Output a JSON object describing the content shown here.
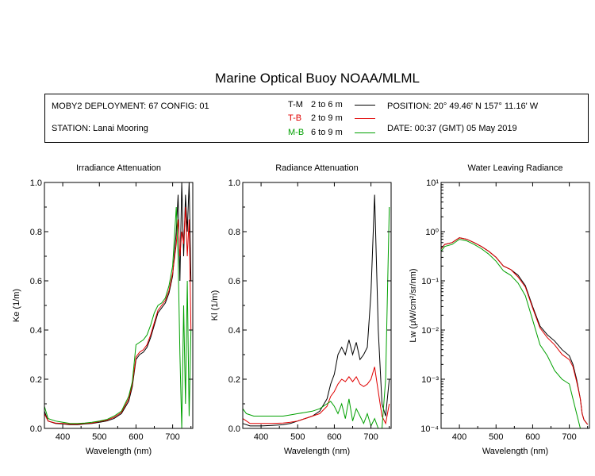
{
  "title": "Marine Optical Buoy NOAA/MLML",
  "info": {
    "deployment": "MOBY2 DEPLOYMENT: 67 CONFIG: 01",
    "station": "STATION: Lanai Mooring",
    "position": "POSITION: 20° 49.46' N   157° 11.16' W",
    "date": "DATE: 00:37 (GMT) 05 May 2019",
    "legend": [
      {
        "code": "T-M",
        "range": "2 to 6  m",
        "color": "#000000"
      },
      {
        "code": "T-B",
        "range": "2 to 9  m",
        "color": "#e00000"
      },
      {
        "code": "M-B",
        "range": "6 to 9  m",
        "color": "#00a000"
      }
    ]
  },
  "chart_data": [
    {
      "type": "line",
      "title": "Irradiance Attenuation",
      "xlabel": "Wavelength (nm)",
      "ylabel": "Ke  (1/m)",
      "xlim": [
        350,
        755
      ],
      "ylim": [
        0,
        1.0
      ],
      "xticks": [
        400,
        500,
        600,
        700
      ],
      "yticks": [
        0.0,
        0.2,
        0.4,
        0.6,
        0.8,
        1.0
      ],
      "yticklabels": [
        "0.0",
        "0.2",
        "0.4",
        "0.6",
        "0.8",
        "1.0"
      ],
      "series": [
        {
          "name": "T-M",
          "color": "#000000",
          "x": [
            350,
            360,
            380,
            400,
            420,
            440,
            460,
            480,
            500,
            520,
            540,
            560,
            580,
            590,
            600,
            610,
            620,
            630,
            640,
            650,
            660,
            670,
            680,
            690,
            700,
            710,
            715,
            720,
            725,
            730,
            735,
            740,
            745,
            750
          ],
          "y": [
            0.07,
            0.03,
            0.02,
            0.018,
            0.015,
            0.015,
            0.018,
            0.02,
            0.025,
            0.03,
            0.04,
            0.06,
            0.11,
            0.17,
            0.28,
            0.3,
            0.31,
            0.33,
            0.37,
            0.42,
            0.47,
            0.49,
            0.51,
            0.55,
            0.62,
            0.8,
            0.95,
            0.6,
            1.0,
            0.7,
            0.95,
            0.8,
            1.0,
            0.6
          ]
        },
        {
          "name": "T-B",
          "color": "#e00000",
          "x": [
            350,
            360,
            380,
            400,
            420,
            440,
            460,
            480,
            500,
            520,
            540,
            560,
            580,
            590,
            600,
            610,
            620,
            630,
            640,
            650,
            660,
            670,
            680,
            690,
            700,
            710,
            715,
            720,
            725,
            730,
            735,
            740,
            745,
            750
          ],
          "y": [
            0.06,
            0.03,
            0.022,
            0.02,
            0.017,
            0.017,
            0.02,
            0.022,
            0.028,
            0.033,
            0.045,
            0.065,
            0.12,
            0.18,
            0.29,
            0.31,
            0.32,
            0.34,
            0.38,
            0.43,
            0.48,
            0.5,
            0.52,
            0.56,
            0.63,
            0.75,
            0.85,
            0.7,
            0.8,
            0.75,
            0.9,
            0.7,
            0.85,
            0.4
          ]
        },
        {
          "name": "M-B",
          "color": "#00a000",
          "x": [
            350,
            360,
            380,
            400,
            420,
            440,
            460,
            480,
            500,
            520,
            540,
            560,
            580,
            590,
            600,
            610,
            620,
            630,
            640,
            650,
            660,
            670,
            680,
            690,
            700,
            710,
            715,
            720,
            725,
            730,
            735,
            740,
            745,
            750
          ],
          "y": [
            0.09,
            0.04,
            0.03,
            0.025,
            0.02,
            0.02,
            0.022,
            0.025,
            0.03,
            0.036,
            0.05,
            0.07,
            0.13,
            0.19,
            0.34,
            0.35,
            0.36,
            0.38,
            0.42,
            0.47,
            0.5,
            0.51,
            0.53,
            0.58,
            0.66,
            0.9,
            0.7,
            0.3,
            0.0,
            0.5,
            0.1,
            0.6,
            0.05,
            0.4
          ]
        }
      ]
    },
    {
      "type": "line",
      "title": "Radiance Attenuation",
      "xlabel": "Wavelength (nm)",
      "ylabel": "Kl  (1/m)",
      "xlim": [
        350,
        755
      ],
      "ylim": [
        0,
        1.0
      ],
      "xticks": [
        400,
        500,
        600,
        700
      ],
      "yticks": [
        0.0,
        0.2,
        0.4,
        0.6,
        0.8,
        1.0
      ],
      "yticklabels": [
        "0.0",
        "0.2",
        "0.4",
        "0.6",
        "0.8",
        "1.0"
      ],
      "series": [
        {
          "name": "T-M",
          "color": "#000000",
          "x": [
            350,
            370,
            400,
            430,
            460,
            480,
            500,
            520,
            540,
            560,
            580,
            590,
            600,
            610,
            620,
            630,
            640,
            650,
            660,
            670,
            680,
            690,
            700,
            710,
            720,
            730,
            740,
            750
          ],
          "y": [
            0.02,
            0.01,
            0.01,
            0.012,
            0.015,
            0.02,
            0.03,
            0.04,
            0.05,
            0.07,
            0.12,
            0.18,
            0.22,
            0.3,
            0.33,
            0.3,
            0.36,
            0.3,
            0.35,
            0.28,
            0.3,
            0.33,
            0.55,
            0.95,
            0.4,
            0.1,
            0.05,
            0.2
          ]
        },
        {
          "name": "T-B",
          "color": "#e00000",
          "x": [
            350,
            370,
            400,
            430,
            460,
            480,
            500,
            520,
            540,
            560,
            580,
            590,
            600,
            610,
            620,
            630,
            640,
            650,
            660,
            670,
            680,
            690,
            700,
            710,
            720,
            730,
            740,
            750
          ],
          "y": [
            0.04,
            0.02,
            0.02,
            0.02,
            0.022,
            0.025,
            0.03,
            0.04,
            0.05,
            0.06,
            0.09,
            0.13,
            0.15,
            0.18,
            0.2,
            0.19,
            0.21,
            0.19,
            0.21,
            0.18,
            0.17,
            0.18,
            0.2,
            0.25,
            0.15,
            0.05,
            0.02,
            0.1
          ]
        },
        {
          "name": "M-B",
          "color": "#00a000",
          "x": [
            350,
            360,
            380,
            400,
            420,
            440,
            460,
            480,
            500,
            520,
            540,
            560,
            580,
            590,
            600,
            610,
            620,
            630,
            640,
            650,
            660,
            670,
            680,
            690,
            700,
            710,
            720,
            730,
            740,
            750
          ],
          "y": [
            0.08,
            0.06,
            0.05,
            0.05,
            0.05,
            0.05,
            0.05,
            0.055,
            0.06,
            0.065,
            0.07,
            0.08,
            0.1,
            0.11,
            0.09,
            0.06,
            0.1,
            0.04,
            0.12,
            0.03,
            0.08,
            0.05,
            0.02,
            0.06,
            0.01,
            0.04,
            0.0,
            0.0,
            0.2,
            0.9
          ]
        }
      ]
    },
    {
      "type": "line",
      "title": "Water Leaving Radiance",
      "xlabel": "Wavelength (nm)",
      "ylabel": "Lw  (μW/cm²/sr/nm)",
      "yscale": "log",
      "xlim": [
        350,
        755
      ],
      "ylim": [
        0.0001,
        10
      ],
      "xticks": [
        400,
        500,
        600,
        700
      ],
      "yticks": [
        0.0001,
        0.001,
        0.01,
        0.1,
        1,
        10
      ],
      "yticklabels": [
        "10⁻⁴",
        "10⁻³",
        "10⁻²",
        "10⁻¹",
        "10⁰",
        "10¹"
      ],
      "series": [
        {
          "name": "T-M",
          "color": "#000000",
          "x": [
            350,
            360,
            380,
            400,
            420,
            440,
            460,
            480,
            500,
            520,
            540,
            560,
            580,
            600,
            620,
            640,
            660,
            680,
            700,
            710,
            720,
            730,
            735,
            740,
            750
          ],
          "y": [
            0.45,
            0.55,
            0.6,
            0.75,
            0.7,
            0.6,
            0.5,
            0.4,
            0.3,
            0.2,
            0.17,
            0.13,
            0.08,
            0.03,
            0.012,
            0.008,
            0.006,
            0.004,
            0.003,
            0.002,
            0.001,
            0.0004,
            0.0002,
            0.00015,
            0.00012
          ]
        },
        {
          "name": "T-B",
          "color": "#e00000",
          "x": [
            350,
            360,
            380,
            400,
            420,
            440,
            460,
            480,
            500,
            520,
            540,
            560,
            580,
            600,
            620,
            640,
            660,
            680,
            700,
            710,
            720,
            730,
            735,
            740,
            750
          ],
          "y": [
            0.45,
            0.55,
            0.6,
            0.75,
            0.7,
            0.6,
            0.5,
            0.4,
            0.3,
            0.2,
            0.17,
            0.12,
            0.075,
            0.028,
            0.011,
            0.007,
            0.005,
            0.0032,
            0.0025,
            0.0018,
            0.0009,
            0.0004,
            0.0002,
            0.00015,
            0.00012
          ]
        },
        {
          "name": "M-B",
          "color": "#00a000",
          "x": [
            350,
            360,
            380,
            400,
            420,
            440,
            460,
            480,
            500,
            520,
            540,
            560,
            580,
            600,
            620,
            640,
            660,
            680,
            700,
            710,
            720,
            730,
            735,
            740
          ],
          "y": [
            0.4,
            0.5,
            0.55,
            0.7,
            0.65,
            0.55,
            0.45,
            0.35,
            0.25,
            0.16,
            0.13,
            0.09,
            0.05,
            0.016,
            0.005,
            0.003,
            0.0015,
            0.001,
            0.0008,
            0.0004,
            0.0002,
            0.0001,
            0.0001,
            0.0001
          ]
        }
      ]
    }
  ]
}
